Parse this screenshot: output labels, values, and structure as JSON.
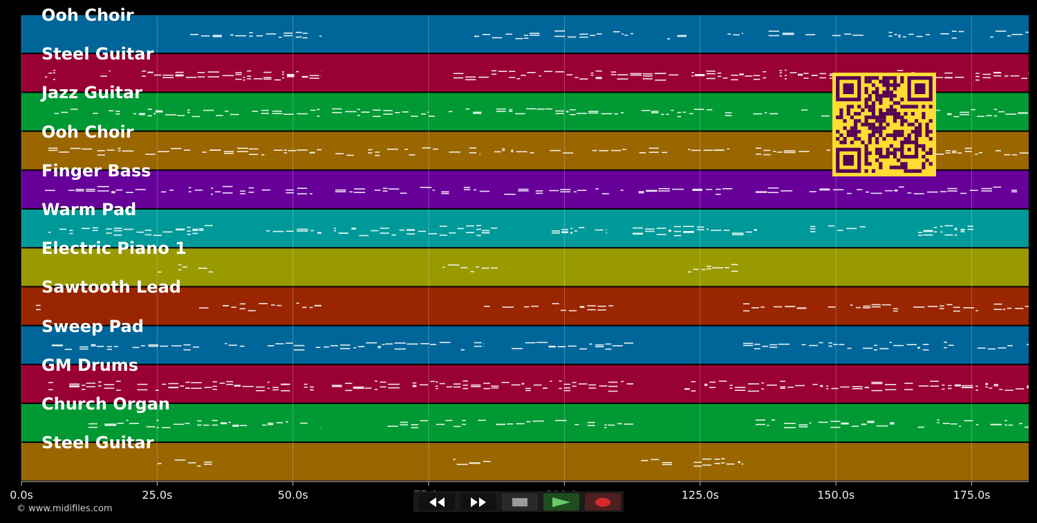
{
  "timeline": {
    "max_seconds": 185.5,
    "ticks": [
      "0.0s",
      "25.0s",
      "50.0s",
      "75.0s",
      "100.0s",
      "125.0s",
      "150.0s",
      "175.0s"
    ],
    "tick_values": [
      0,
      25,
      50,
      75,
      100,
      125,
      150,
      175
    ]
  },
  "tracks": [
    {
      "name": "Ooh Choir",
      "color": "#006699"
    },
    {
      "name": "Steel Guitar",
      "color": "#990033"
    },
    {
      "name": "Jazz Guitar",
      "color": "#009933"
    },
    {
      "name": "Ooh Choir",
      "color": "#996600"
    },
    {
      "name": "Finger Bass",
      "color": "#660099"
    },
    {
      "name": "Warm Pad",
      "color": "#009999"
    },
    {
      "name": "Electric Piano 1",
      "color": "#999900"
    },
    {
      "name": "Sawtooth Lead",
      "color": "#992600"
    },
    {
      "name": "Sweep Pad",
      "color": "#006699"
    },
    {
      "name": "GM Drums",
      "color": "#990033"
    },
    {
      "name": "Church Organ",
      "color": "#009933"
    },
    {
      "name": "Steel Guitar",
      "color": "#996600"
    }
  ],
  "copyright": "© www.midifiles.com",
  "transport": {
    "buttons": [
      {
        "name": "rewind-button",
        "icon": "rewind-icon",
        "color": "#111111"
      },
      {
        "name": "fast-forward-button",
        "icon": "fast-forward-icon",
        "color": "#111111"
      },
      {
        "name": "stop-button",
        "icon": "stop-icon",
        "color": "#2a2a2a"
      },
      {
        "name": "play-button",
        "icon": "play-icon",
        "color": "#1f4d1f"
      },
      {
        "name": "record-button",
        "icon": "record-icon",
        "color": "#4d1f1f"
      }
    ]
  },
  "qr_color": "#ffdd33",
  "qr_dark": "#550055"
}
